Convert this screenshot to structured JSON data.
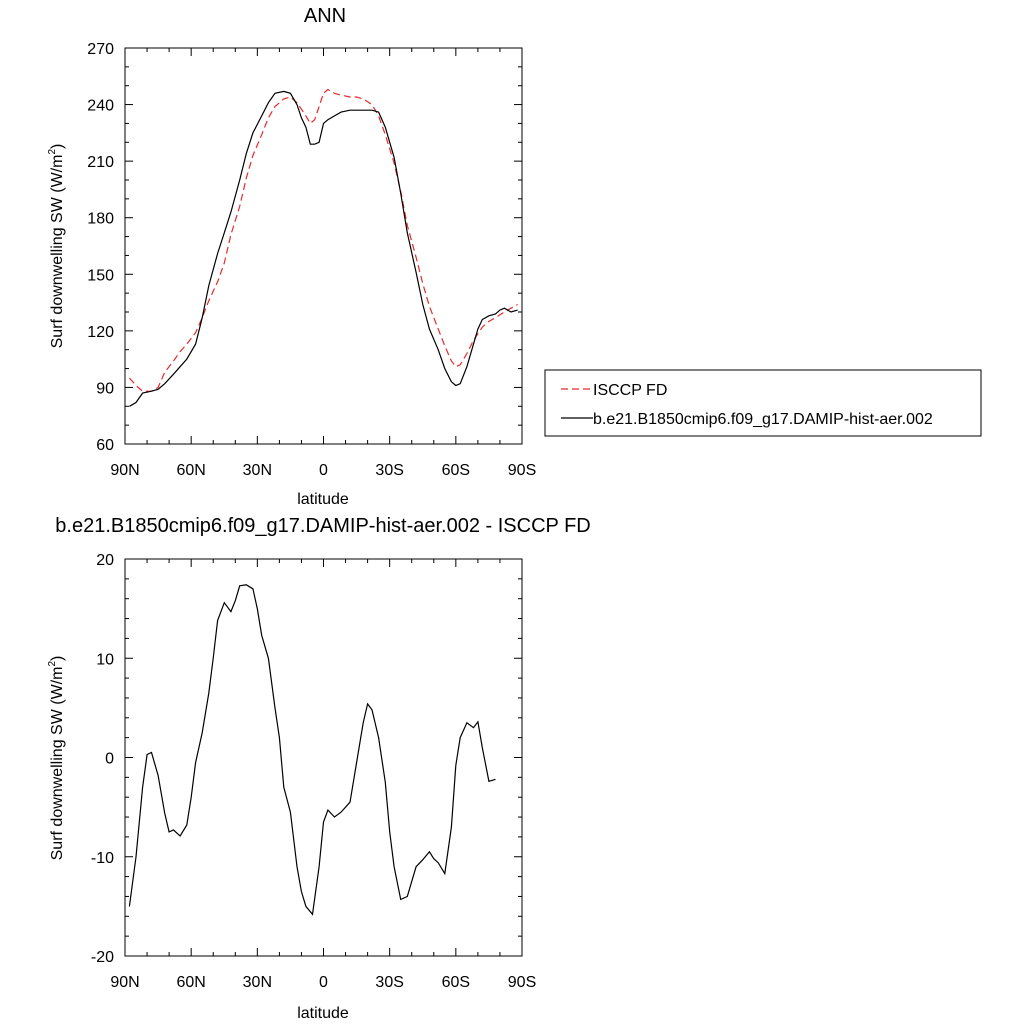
{
  "colors": {
    "series_obs": "#e8292a",
    "series_model": "#000000",
    "axis": "#000000"
  },
  "chart_data": [
    {
      "type": "line",
      "title": "ANN",
      "xlabel": "latitude",
      "ylabel_main": "Surf downwelling SW (W/m",
      "ylabel_sup": "2",
      "ylabel_end": ")",
      "xlim": [
        90,
        -90
      ],
      "ylim": [
        60,
        270
      ],
      "xticks": [
        90,
        60,
        30,
        0,
        -30,
        -60,
        -90
      ],
      "xtick_labels": [
        "90N",
        "60N",
        "30N",
        "0",
        "30S",
        "60S",
        "90S"
      ],
      "yticks": [
        60,
        90,
        120,
        150,
        180,
        210,
        240,
        270
      ],
      "ytick_labels": [
        "60",
        "90",
        "120",
        "150",
        "180",
        "210",
        "240",
        "270"
      ],
      "legend_position": "right",
      "series": [
        {
          "name": "ISCCP FD",
          "style": "dashed",
          "color": "#e8292a",
          "points": [
            [
              88,
              95
            ],
            [
              85,
              91
            ],
            [
              82,
              88
            ],
            [
              78,
              88
            ],
            [
              75,
              90
            ],
            [
              72,
              98
            ],
            [
              68,
              104
            ],
            [
              65,
              109
            ],
            [
              62,
              113
            ],
            [
              58,
              119
            ],
            [
              55,
              127
            ],
            [
              52,
              136
            ],
            [
              48,
              146
            ],
            [
              45,
              156
            ],
            [
              42,
              171
            ],
            [
              38,
              186
            ],
            [
              35,
              201
            ],
            [
              32,
              213
            ],
            [
              28,
              224
            ],
            [
              25,
              233
            ],
            [
              22,
              239
            ],
            [
              18,
              243
            ],
            [
              15,
              244
            ],
            [
              12,
              241
            ],
            [
              8,
              234
            ],
            [
              6,
              230
            ],
            [
              4,
              232
            ],
            [
              2,
              239
            ],
            [
              0,
              246
            ],
            [
              -2,
              248
            ],
            [
              -5,
              246
            ],
            [
              -8,
              245
            ],
            [
              -12,
              244
            ],
            [
              -15,
              244
            ],
            [
              -18,
              243
            ],
            [
              -22,
              240
            ],
            [
              -25,
              234
            ],
            [
              -28,
              224
            ],
            [
              -32,
              209
            ],
            [
              -35,
              194
            ],
            [
              -38,
              176
            ],
            [
              -42,
              159
            ],
            [
              -45,
              145
            ],
            [
              -48,
              133
            ],
            [
              -52,
              121
            ],
            [
              -55,
              112
            ],
            [
              -58,
              104
            ],
            [
              -60,
              101
            ],
            [
              -62,
              102
            ],
            [
              -65,
              108
            ],
            [
              -68,
              115
            ],
            [
              -72,
              122
            ],
            [
              -75,
              125
            ],
            [
              -78,
              127
            ],
            [
              -82,
              130
            ],
            [
              -85,
              132
            ],
            [
              -88,
              134
            ]
          ]
        },
        {
          "name": "b.e21.B1850cmip6.f09_g17.DAMIP-hist-aer.002",
          "style": "solid",
          "color": "#000000",
          "points": [
            [
              88,
              80
            ],
            [
              85,
              82
            ],
            [
              82,
              87
            ],
            [
              78,
              88
            ],
            [
              75,
              89
            ],
            [
              72,
              92
            ],
            [
              68,
              97
            ],
            [
              65,
              101
            ],
            [
              62,
              105
            ],
            [
              58,
              113
            ],
            [
              55,
              127
            ],
            [
              52,
              144
            ],
            [
              48,
              161
            ],
            [
              45,
              172
            ],
            [
              42,
              183
            ],
            [
              38,
              200
            ],
            [
              35,
              214
            ],
            [
              32,
              225
            ],
            [
              28,
              234
            ],
            [
              25,
              241
            ],
            [
              22,
              246
            ],
            [
              18,
              247
            ],
            [
              15,
              246
            ],
            [
              12,
              240
            ],
            [
              10,
              233
            ],
            [
              8,
              228
            ],
            [
              6,
              219
            ],
            [
              4,
              219
            ],
            [
              2,
              220
            ],
            [
              0,
              230
            ],
            [
              -2,
              232
            ],
            [
              -5,
              234
            ],
            [
              -8,
              236
            ],
            [
              -12,
              237
            ],
            [
              -15,
              237
            ],
            [
              -18,
              237
            ],
            [
              -22,
              237
            ],
            [
              -25,
              236
            ],
            [
              -28,
              228
            ],
            [
              -32,
              212
            ],
            [
              -35,
              193
            ],
            [
              -38,
              172
            ],
            [
              -42,
              151
            ],
            [
              -45,
              134
            ],
            [
              -48,
              121
            ],
            [
              -52,
              110
            ],
            [
              -55,
              100
            ],
            [
              -58,
              93
            ],
            [
              -60,
              91
            ],
            [
              -62,
              92
            ],
            [
              -65,
              101
            ],
            [
              -68,
              113
            ],
            [
              -70,
              121
            ],
            [
              -72,
              126
            ],
            [
              -75,
              128
            ],
            [
              -78,
              129
            ],
            [
              -80,
              131
            ],
            [
              -82,
              132
            ],
            [
              -85,
              130
            ],
            [
              -88,
              131
            ]
          ]
        }
      ]
    },
    {
      "type": "line",
      "title": "b.e21.B1850cmip6.f09_g17.DAMIP-hist-aer.002 - ISCCP FD",
      "xlabel": "latitude",
      "ylabel_main": "Surf downwelling SW (W/m",
      "ylabel_sup": "2",
      "ylabel_end": ")",
      "xlim": [
        90,
        -90
      ],
      "ylim": [
        -20,
        20
      ],
      "xticks": [
        90,
        60,
        30,
        0,
        -30,
        -60,
        -90
      ],
      "xtick_labels": [
        "90N",
        "60N",
        "30N",
        "0",
        "30S",
        "60S",
        "90S"
      ],
      "yticks": [
        -20,
        -10,
        0,
        10,
        20
      ],
      "ytick_labels": [
        "-20",
        "-10",
        "0",
        "10",
        "20"
      ],
      "series": [
        {
          "style": "solid",
          "color": "#000000",
          "points": [
            [
              88,
              -15
            ],
            [
              85,
              -10
            ],
            [
              82,
              -3
            ],
            [
              80,
              0.3
            ],
            [
              78,
              0.5
            ],
            [
              75,
              -1.8
            ],
            [
              72,
              -5.6
            ],
            [
              70,
              -7.5
            ],
            [
              68,
              -7.3
            ],
            [
              65,
              -7.9
            ],
            [
              62,
              -6.8
            ],
            [
              60,
              -4
            ],
            [
              58,
              -0.5
            ],
            [
              55,
              2.5
            ],
            [
              52,
              6.5
            ],
            [
              50,
              10
            ],
            [
              48,
              13.8
            ],
            [
              45,
              15.6
            ],
            [
              42,
              14.7
            ],
            [
              40,
              15.8
            ],
            [
              38,
              17.3
            ],
            [
              35,
              17.4
            ],
            [
              32,
              17
            ],
            [
              30,
              15
            ],
            [
              28,
              12.3
            ],
            [
              25,
              10
            ],
            [
              22,
              5
            ],
            [
              20,
              2
            ],
            [
              18,
              -3
            ],
            [
              15,
              -5.5
            ],
            [
              12,
              -11
            ],
            [
              10,
              -13.5
            ],
            [
              8,
              -15
            ],
            [
              5,
              -15.8
            ],
            [
              2,
              -11
            ],
            [
              0,
              -6.5
            ],
            [
              -2,
              -5.3
            ],
            [
              -5,
              -6
            ],
            [
              -8,
              -5.5
            ],
            [
              -12,
              -4.5
            ],
            [
              -15,
              -0.5
            ],
            [
              -18,
              3.5
            ],
            [
              -20,
              5.4
            ],
            [
              -22,
              4.8
            ],
            [
              -25,
              2
            ],
            [
              -28,
              -2.5
            ],
            [
              -30,
              -7.5
            ],
            [
              -32,
              -11
            ],
            [
              -35,
              -14.3
            ],
            [
              -38,
              -14
            ],
            [
              -40,
              -12.5
            ],
            [
              -42,
              -11
            ],
            [
              -45,
              -10.3
            ],
            [
              -48,
              -9.5
            ],
            [
              -50,
              -10.2
            ],
            [
              -52,
              -10.6
            ],
            [
              -55,
              -11.7
            ],
            [
              -58,
              -7
            ],
            [
              -60,
              -0.8
            ],
            [
              -62,
              2
            ],
            [
              -65,
              3.5
            ],
            [
              -68,
              3
            ],
            [
              -70,
              3.6
            ],
            [
              -72,
              1
            ],
            [
              -75,
              -2.4
            ],
            [
              -78,
              -2.2
            ]
          ]
        }
      ]
    }
  ]
}
